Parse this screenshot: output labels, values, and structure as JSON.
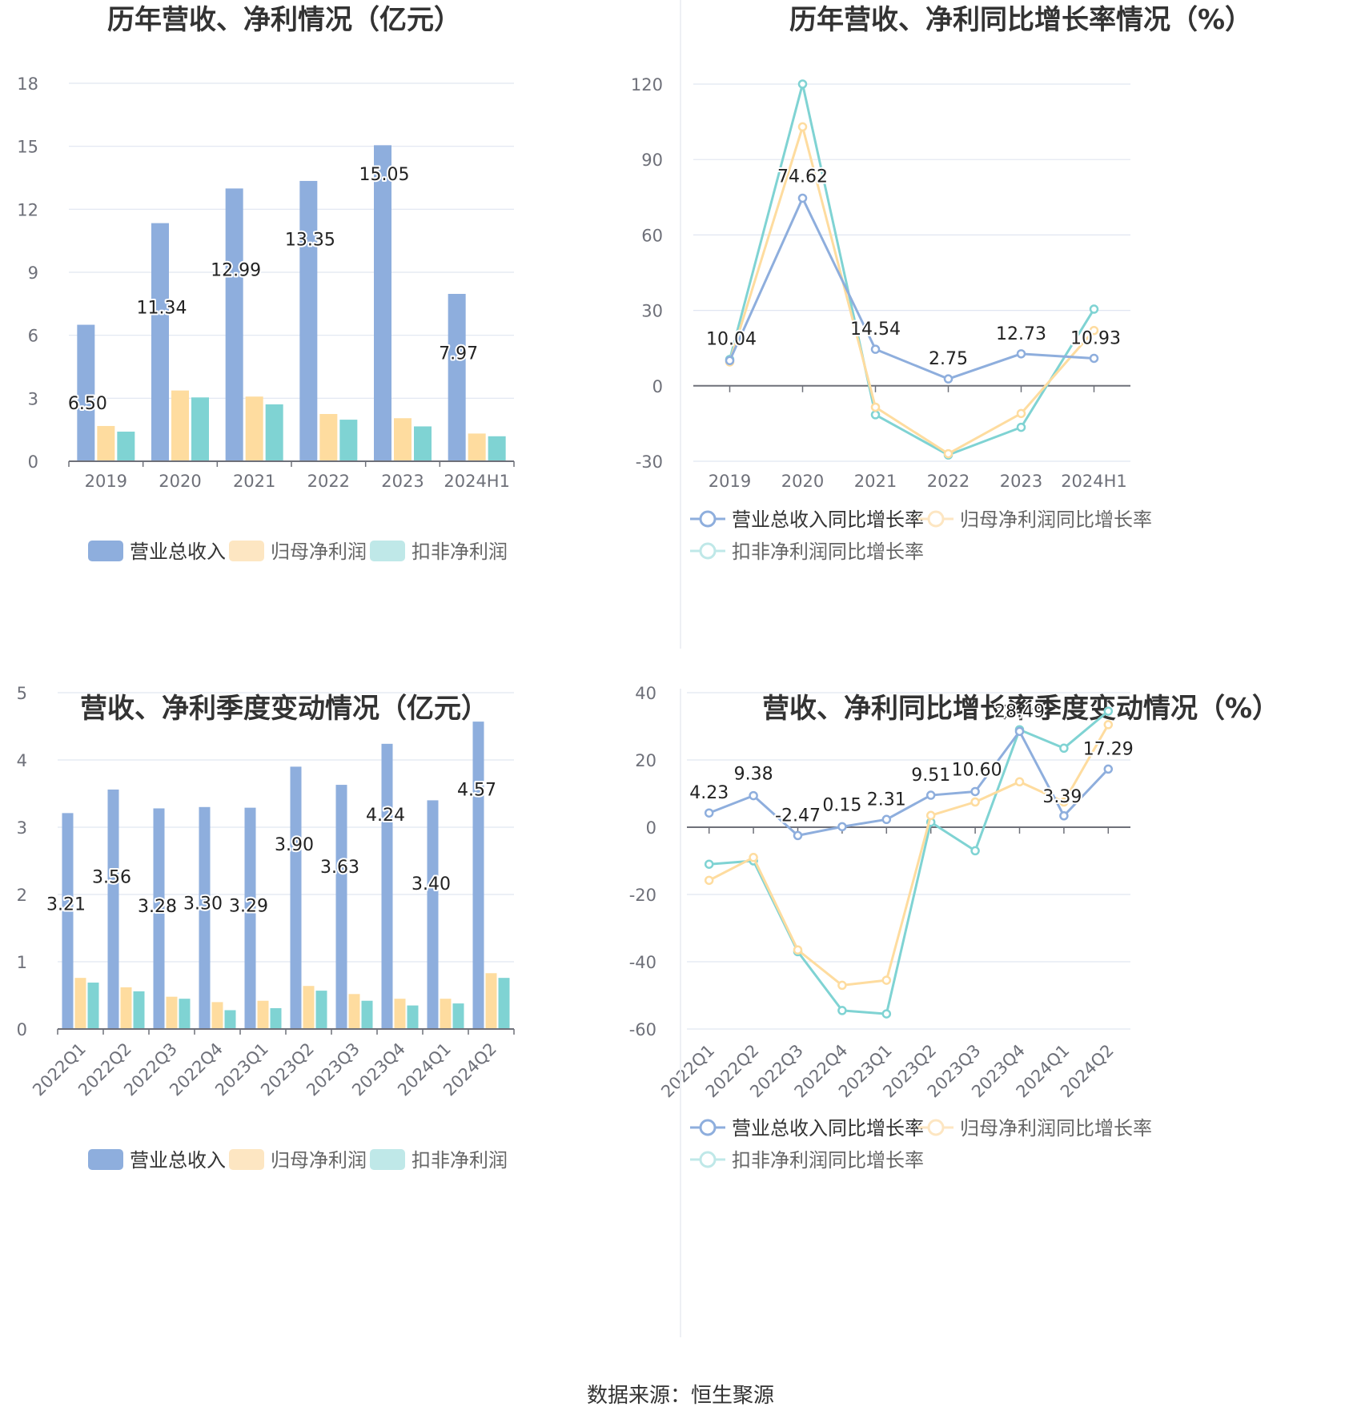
{
  "colors": {
    "revenue": "#8eaedd",
    "net_profit": "#fedc9f",
    "deducted_profit": "#7fd3d3",
    "grid": "#e0e6f1",
    "axis": "#6e7079"
  },
  "source": "数据来源：恒生聚源",
  "chart_data": [
    {
      "id": "annual_values",
      "type": "bar",
      "title": "历年营收、净利情况（亿元）",
      "categories": [
        "2019",
        "2020",
        "2021",
        "2022",
        "2023",
        "2024H1"
      ],
      "ylim": [
        0,
        18
      ],
      "yticks": [
        0,
        3,
        6,
        9,
        12,
        15,
        18
      ],
      "series": [
        {
          "name": "营业总收入",
          "values": [
            6.5,
            11.34,
            12.99,
            13.35,
            15.05,
            7.97
          ],
          "labels": [
            "6.50",
            "11.34",
            "12.99",
            "13.35",
            "15.05",
            "7.97"
          ]
        },
        {
          "name": "归母净利润",
          "values": [
            1.68,
            3.37,
            3.08,
            2.25,
            2.05,
            1.32
          ]
        },
        {
          "name": "扣非净利润",
          "values": [
            1.41,
            3.04,
            2.71,
            1.98,
            1.66,
            1.19
          ]
        }
      ],
      "grid": true,
      "legend_position": "bottom"
    },
    {
      "id": "annual_growth",
      "type": "line",
      "title": "历年营收、净利同比增长率情况（%）",
      "categories": [
        "2019",
        "2020",
        "2021",
        "2022",
        "2023",
        "2024H1"
      ],
      "ylim": [
        -30,
        120
      ],
      "yticks": [
        -30,
        0,
        30,
        60,
        90,
        120
      ],
      "series": [
        {
          "name": "营业总收入同比增长率",
          "values": [
            10.04,
            74.62,
            14.54,
            2.75,
            12.73,
            10.93
          ],
          "labels": [
            "10.04",
            "74.62",
            "14.54",
            "2.75",
            "12.73",
            "10.93"
          ]
        },
        {
          "name": "归母净利润同比增长率",
          "values": [
            9.5,
            103,
            -8.5,
            -27,
            -11,
            22
          ]
        },
        {
          "name": "扣非净利润同比增长率",
          "values": [
            10.5,
            120,
            -11.5,
            -27.5,
            -16.5,
            30.5
          ]
        }
      ],
      "grid": true,
      "legend_position": "bottom"
    },
    {
      "id": "quarterly_values",
      "type": "bar",
      "title": "营收、净利季度变动情况（亿元）",
      "categories": [
        "2022Q1",
        "2022Q2",
        "2022Q3",
        "2022Q4",
        "2023Q1",
        "2023Q2",
        "2023Q3",
        "2023Q4",
        "2024Q1",
        "2024Q2"
      ],
      "ylim": [
        0,
        5
      ],
      "yticks": [
        0,
        1,
        2,
        3,
        4,
        5
      ],
      "series": [
        {
          "name": "营业总收入",
          "values": [
            3.21,
            3.56,
            3.28,
            3.3,
            3.29,
            3.9,
            3.63,
            4.24,
            3.4,
            4.57
          ],
          "labels": [
            "3.21",
            "3.56",
            "3.28",
            "3.30",
            "3.29",
            "3.90",
            "3.63",
            "4.24",
            "3.40",
            "4.57"
          ]
        },
        {
          "name": "归母净利润",
          "values": [
            0.76,
            0.62,
            0.48,
            0.4,
            0.42,
            0.64,
            0.52,
            0.45,
            0.45,
            0.83
          ]
        },
        {
          "name": "扣非净利润",
          "values": [
            0.69,
            0.56,
            0.45,
            0.28,
            0.31,
            0.57,
            0.42,
            0.35,
            0.38,
            0.76
          ]
        }
      ],
      "grid": true,
      "legend_position": "bottom"
    },
    {
      "id": "quarterly_growth",
      "type": "line",
      "title": "营收、净利同比增长率季度变动情况（%）",
      "categories": [
        "2022Q1",
        "2022Q2",
        "2022Q3",
        "2022Q4",
        "2023Q1",
        "2023Q2",
        "2023Q3",
        "2023Q4",
        "2024Q1",
        "2024Q2"
      ],
      "ylim": [
        -60,
        40
      ],
      "yticks": [
        -60,
        -40,
        -20,
        0,
        20,
        40
      ],
      "series": [
        {
          "name": "营业总收入同比增长率",
          "values": [
            4.23,
            9.38,
            -2.47,
            0.15,
            2.31,
            9.51,
            10.6,
            28.49,
            3.39,
            17.29
          ],
          "labels": [
            "4.23",
            "9.38",
            "-2.47",
            "0.15",
            "2.31",
            "9.51",
            "10.60",
            "28.49",
            "3.39",
            "17.29"
          ]
        },
        {
          "name": "归母净利润同比增长率",
          "values": [
            -15.8,
            -9,
            -36.5,
            -47,
            -45.5,
            3.5,
            7.5,
            13.5,
            7.5,
            30.5
          ]
        },
        {
          "name": "扣非净利润同比增长率",
          "values": [
            -11,
            -10,
            -37,
            -54.5,
            -55.5,
            1.5,
            -7,
            29,
            23.5,
            34.5
          ]
        }
      ],
      "grid": true,
      "legend_position": "bottom"
    }
  ]
}
